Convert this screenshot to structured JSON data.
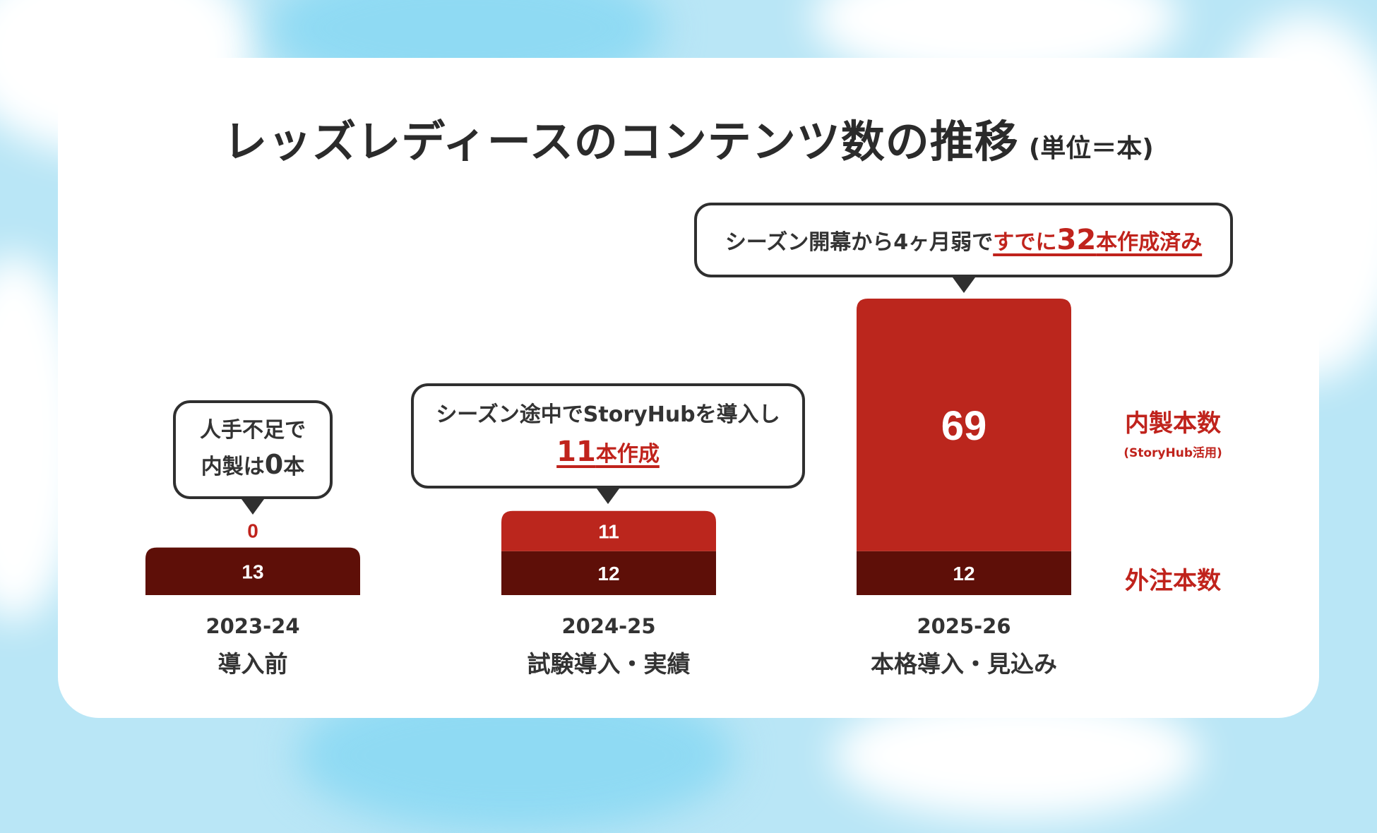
{
  "title": "レッズレディースのコンテンツ数の推移",
  "unit_note": "(単位＝本)",
  "colors": {
    "inhouse": "#bb261d",
    "outsourced": "#5e0f08",
    "accent": "#c0231c",
    "text": "#333333"
  },
  "chart_data": {
    "type": "bar",
    "stacked": true,
    "categories": [
      {
        "period": "2023-24",
        "phase": "導入前"
      },
      {
        "period": "2024-25",
        "phase": "試験導入・実績"
      },
      {
        "period": "2025-26",
        "phase": "本格導入・見込み"
      }
    ],
    "series": [
      {
        "name": "外注本数",
        "values": [
          13,
          12,
          12
        ]
      },
      {
        "name": "内製本数",
        "values": [
          0,
          11,
          69
        ]
      }
    ],
    "ylim": [
      0,
      81
    ],
    "grid": false
  },
  "legend": {
    "inhouse_label": "内製本数",
    "inhouse_sub": "(StoryHub活用)",
    "outsourced_label": "外注本数"
  },
  "callouts": {
    "c1_line1": "人手不足で",
    "c1_line2_pre": "内製は",
    "c1_line2_num": "0",
    "c1_line2_post": "本",
    "c2_line1": "シーズン途中でStoryHubを導入し",
    "c2_num": "11",
    "c2_post": "本作成",
    "c3_pre": "シーズン開幕から4ヶ月弱で",
    "c3_accent_pre": "すでに",
    "c3_num": "32",
    "c3_accent_post": "本作成済み"
  }
}
